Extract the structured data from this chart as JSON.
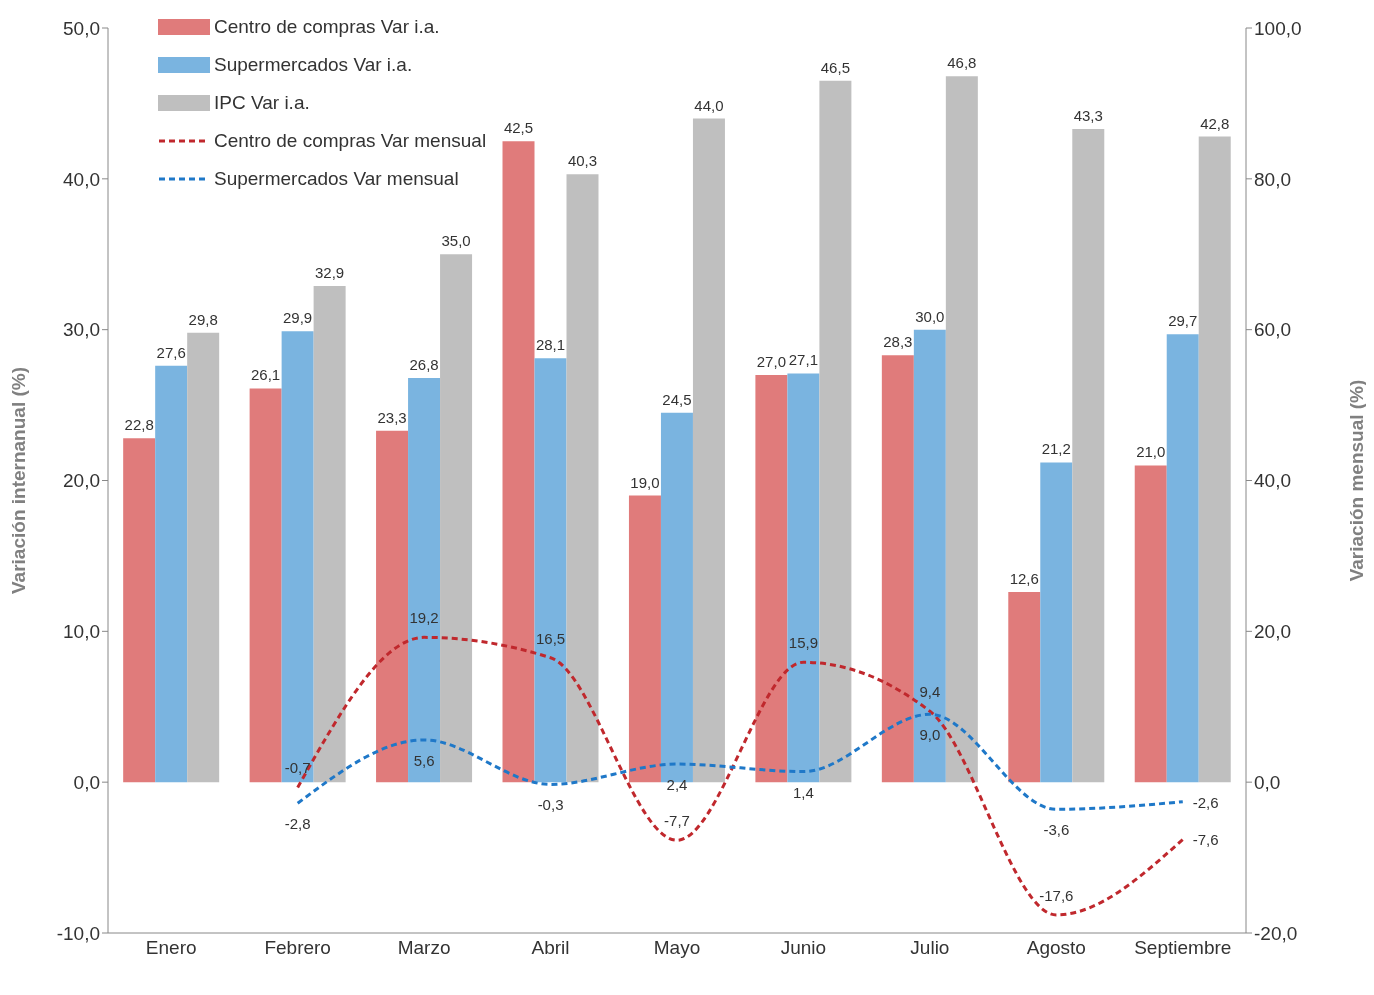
{
  "chart_data": {
    "type": "bar",
    "categories": [
      "Enero",
      "Febrero",
      "Marzo",
      "Abril",
      "Mayo",
      "Junio",
      "Julio",
      "Agosto",
      "Septiembre"
    ],
    "ylabel": "Variación internanual (%)",
    "y2label": "Variación mensual (%)",
    "ylim": [
      -10,
      50
    ],
    "yticks": [
      {
        "value": -10,
        "label": "-10,0"
      },
      {
        "value": 0,
        "label": "0,0"
      },
      {
        "value": 10,
        "label": "10,0"
      },
      {
        "value": 20,
        "label": "20,0"
      },
      {
        "value": 30,
        "label": "30,0"
      },
      {
        "value": 40,
        "label": "40,0"
      },
      {
        "value": 50,
        "label": "50,0"
      }
    ],
    "y2lim": [
      -20,
      100
    ],
    "y2ticks": [
      {
        "value": -20,
        "label": "-20,0"
      },
      {
        "value": 0,
        "label": "0,0"
      },
      {
        "value": 20,
        "label": "20,0"
      },
      {
        "value": 40,
        "label": "40,0"
      },
      {
        "value": 60,
        "label": "60,0"
      },
      {
        "value": 80,
        "label": "80,0"
      },
      {
        "value": 100,
        "label": "100,0"
      }
    ],
    "grid": false,
    "legend": "top left",
    "line_style": "dashed",
    "marker": "none",
    "series": [
      {
        "name": "Centro de compras Var i.a.",
        "color": "#e07b7b",
        "values": [
          22.8,
          26.1,
          23.3,
          42.5,
          19.0,
          27.0,
          28.3,
          12.6,
          21.0
        ],
        "value_labels": [
          "22,8",
          "26,1",
          "23,3",
          "42,5",
          "19,0",
          "27,0",
          "28,3",
          "12,6",
          "21,0"
        ]
      },
      {
        "name": "Supermercados Var i.a.",
        "color": "#7ab4e0",
        "values": [
          27.6,
          29.9,
          26.8,
          28.1,
          24.5,
          27.1,
          30.0,
          21.2,
          29.7
        ],
        "value_labels": [
          "27,6",
          "29,9",
          "26,8",
          "28,1",
          "24,5",
          "27,1",
          "30,0",
          "21,2",
          "29,7"
        ]
      },
      {
        "name": "IPC Var i.a.",
        "color": "#bfbfbf",
        "values": [
          29.8,
          32.9,
          35.0,
          40.3,
          44.0,
          46.5,
          46.8,
          43.3,
          42.8
        ],
        "value_labels": [
          "29,8",
          "32,9",
          "35,0",
          "40,3",
          "44,0",
          "46,5",
          "46,8",
          "43,3",
          "42,8"
        ]
      },
      {
        "name": "Centro de compras Var mensual",
        "type": "line",
        "axis": "y2",
        "color": "#c0282d",
        "values": [
          null,
          -0.7,
          19.2,
          16.5,
          -7.7,
          15.9,
          9.4,
          -17.6,
          -7.6
        ],
        "value_labels": [
          null,
          "-0,7",
          "19,2",
          "16,5",
          "-7,7",
          "15,9",
          "9,4",
          "-17,6",
          "-7,6"
        ]
      },
      {
        "name": "Supermercados Var mensual",
        "type": "line",
        "axis": "y2",
        "color": "#1f78c8",
        "values": [
          null,
          -2.8,
          5.6,
          -0.3,
          2.4,
          1.4,
          9.0,
          -3.6,
          -2.6
        ],
        "value_labels": [
          null,
          "-2,8",
          "5,6",
          "-0,3",
          "2,4",
          "1,4",
          "9,0",
          "-3,6",
          "-2,6"
        ]
      }
    ]
  }
}
